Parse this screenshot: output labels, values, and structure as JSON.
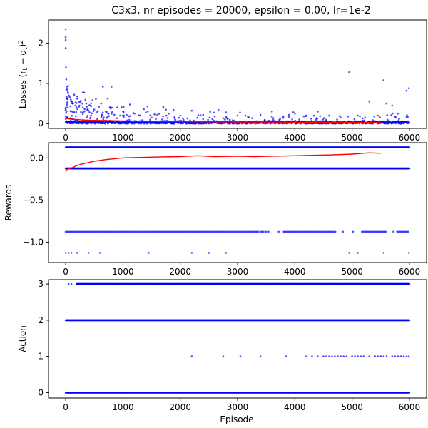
{
  "chart_data": [
    {
      "type": "scatter",
      "title": "C3x3, nr episodes = 20000, epsilon = 0.00, lr=1e-2",
      "ylabel": "Losses $(r_t - q_t)^2$",
      "ylabel_parts": [
        "Losses (r",
        "t",
        " − q",
        "t",
        ")",
        "2"
      ],
      "xlabel": "",
      "xlim": [
        -300,
        6300
      ],
      "ylim": [
        -0.12,
        2.58
      ],
      "xticks": [
        0,
        1000,
        2000,
        3000,
        4000,
        5000,
        6000
      ],
      "yticks": [
        0,
        1,
        2
      ],
      "points": {
        "color": "#0000ff",
        "description_free": true,
        "dense_band": {
          "x_from": 0,
          "x_to": 6000,
          "y_from": 0,
          "y_to": 0.06
        },
        "outliers": [
          [
            0,
            2.35
          ],
          [
            0,
            2.15
          ],
          [
            0,
            2.08
          ],
          [
            0,
            1.88
          ],
          [
            5,
            1.4
          ],
          [
            10,
            1.1
          ],
          [
            20,
            0.92
          ],
          [
            30,
            0.85
          ],
          [
            40,
            0.78
          ],
          [
            55,
            0.7
          ],
          [
            70,
            0.66
          ],
          [
            90,
            0.6
          ],
          [
            110,
            0.55
          ],
          [
            130,
            0.5
          ],
          [
            150,
            0.72
          ],
          [
            170,
            0.45
          ],
          [
            200,
            0.62
          ],
          [
            230,
            0.42
          ],
          [
            260,
            0.55
          ],
          [
            300,
            0.4
          ],
          [
            330,
            0.36
          ],
          [
            360,
            0.5
          ],
          [
            400,
            0.32
          ],
          [
            430,
            0.45
          ],
          [
            470,
            0.58
          ],
          [
            500,
            0.35
          ],
          [
            540,
            0.28
          ],
          [
            580,
            0.42
          ],
          [
            620,
            0.5
          ],
          [
            650,
            0.92
          ],
          [
            700,
            0.3
          ],
          [
            750,
            0.25
          ],
          [
            800,
            0.92
          ],
          [
            850,
            0.22
          ],
          [
            900,
            0.4
          ],
          [
            950,
            0.2
          ],
          [
            1000,
            0.3
          ],
          [
            1100,
            0.18
          ],
          [
            1200,
            0.25
          ],
          [
            1300,
            0.2
          ],
          [
            1400,
            0.28
          ],
          [
            1500,
            0.15
          ],
          [
            1600,
            0.22
          ],
          [
            1700,
            0.18
          ],
          [
            1800,
            0.25
          ],
          [
            1900,
            0.16
          ],
          [
            2000,
            0.2
          ],
          [
            2200,
            0.32
          ],
          [
            2400,
            0.22
          ],
          [
            2600,
            0.18
          ],
          [
            2800,
            0.28
          ],
          [
            3000,
            0.2
          ],
          [
            3200,
            0.15
          ],
          [
            3400,
            0.22
          ],
          [
            3600,
            0.3
          ],
          [
            3800,
            0.18
          ],
          [
            4000,
            0.25
          ],
          [
            4200,
            0.2
          ],
          [
            4400,
            0.3
          ],
          [
            4600,
            0.2
          ],
          [
            4800,
            0.15
          ],
          [
            4950,
            1.28
          ],
          [
            5100,
            0.2
          ],
          [
            5300,
            0.55
          ],
          [
            5450,
            0.2
          ],
          [
            5550,
            1.08
          ],
          [
            5600,
            0.5
          ],
          [
            5700,
            0.45
          ],
          [
            5800,
            0.25
          ],
          [
            5950,
            0.82
          ],
          [
            5990,
            0.88
          ]
        ]
      },
      "trend": {
        "color": "#ff0000",
        "x": [
          0,
          100,
          200,
          300,
          400,
          500,
          700,
          900,
          1200,
          1500,
          2000,
          2500,
          3000,
          3500,
          4000,
          4500,
          5000,
          5500
        ],
        "y": [
          0.13,
          0.11,
          0.1,
          0.09,
          0.085,
          0.08,
          0.075,
          0.07,
          0.06,
          0.055,
          0.05,
          0.045,
          0.04,
          0.04,
          0.035,
          0.035,
          0.03,
          0.03
        ]
      }
    },
    {
      "type": "scatter",
      "title": "",
      "ylabel": "Rewards",
      "xlabel": "",
      "xlim": [
        -300,
        6300
      ],
      "ylim": [
        -1.24,
        0.18
      ],
      "xticks": [
        0,
        1000,
        2000,
        3000,
        4000,
        5000,
        6000
      ],
      "yticks": [
        0.0,
        -0.5,
        -1.0
      ],
      "ytick_labels": [
        "0.0",
        "−0.5",
        "−1.0"
      ],
      "levels": [
        {
          "y": 0.125,
          "x_from": 0,
          "x_to": 6000,
          "density": "dense"
        },
        {
          "y": -0.125,
          "x_from": 0,
          "x_to": 6000,
          "density": "dense"
        },
        {
          "y": -0.875,
          "x_from": 0,
          "x_to": 6000,
          "density": "medium"
        }
      ],
      "sparse_points": [
        [
          0,
          -1.125
        ],
        [
          50,
          -1.125
        ],
        [
          100,
          -1.125
        ],
        [
          200,
          -1.125
        ],
        [
          400,
          -1.125
        ],
        [
          600,
          -1.125
        ],
        [
          1450,
          -1.125
        ],
        [
          2200,
          -1.125
        ],
        [
          2500,
          -1.125
        ],
        [
          2800,
          -1.125
        ],
        [
          4950,
          -1.125
        ],
        [
          5100,
          -1.125
        ],
        [
          5550,
          -1.125
        ],
        [
          5990,
          -1.125
        ]
      ],
      "gaps_level_minus_0875": [
        [
          3300,
          3800
        ],
        [
          4700,
          5200
        ],
        [
          5600,
          5900
        ]
      ],
      "trend": {
        "color": "#ff0000",
        "x": [
          0,
          50,
          100,
          200,
          300,
          500,
          700,
          1000,
          1300,
          1600,
          2000,
          2300,
          2600,
          3000,
          3300,
          3600,
          4000,
          4300,
          4600,
          5000,
          5300,
          5500
        ],
        "y": [
          -0.16,
          -0.13,
          -0.12,
          -0.09,
          -0.07,
          -0.04,
          -0.02,
          0.0,
          0.005,
          0.01,
          0.015,
          0.025,
          0.015,
          0.02,
          0.015,
          0.02,
          0.025,
          0.03,
          0.035,
          0.045,
          0.06,
          0.055
        ]
      }
    },
    {
      "type": "scatter",
      "title": "",
      "ylabel": "Action",
      "xlabel": "Episode",
      "xlim": [
        -300,
        6300
      ],
      "ylim": [
        -0.15,
        3.12
      ],
      "xticks": [
        0,
        1000,
        2000,
        3000,
        4000,
        5000,
        6000
      ],
      "yticks": [
        0,
        1,
        2,
        3
      ],
      "levels": [
        {
          "y": 0,
          "x_from": 0,
          "x_to": 6000,
          "density": "dense"
        },
        {
          "y": 2,
          "x_from": 0,
          "x_to": 6000,
          "density": "dense"
        },
        {
          "y": 3,
          "x_from": 190,
          "x_to": 6000,
          "density": "dense"
        }
      ],
      "sparse_points": [
        [
          50,
          3
        ],
        [
          100,
          3
        ],
        [
          2200,
          1
        ],
        [
          2750,
          1
        ],
        [
          3050,
          1
        ],
        [
          3400,
          1
        ],
        [
          3850,
          1
        ],
        [
          4200,
          1
        ],
        [
          4300,
          1
        ],
        [
          4400,
          1
        ],
        [
          4500,
          1
        ],
        [
          4550,
          1
        ],
        [
          4600,
          1
        ],
        [
          4650,
          1
        ],
        [
          4700,
          1
        ],
        [
          4750,
          1
        ],
        [
          4800,
          1
        ],
        [
          4850,
          1
        ],
        [
          4900,
          1
        ],
        [
          5000,
          1
        ],
        [
          5050,
          1
        ],
        [
          5100,
          1
        ],
        [
          5150,
          1
        ],
        [
          5200,
          1
        ],
        [
          5300,
          1
        ],
        [
          5400,
          1
        ],
        [
          5450,
          1
        ],
        [
          5500,
          1
        ],
        [
          5550,
          1
        ],
        [
          5600,
          1
        ],
        [
          5700,
          1
        ],
        [
          5750,
          1
        ],
        [
          5800,
          1
        ],
        [
          5850,
          1
        ],
        [
          5900,
          1
        ],
        [
          5950,
          1
        ],
        [
          5990,
          1
        ]
      ]
    }
  ],
  "colors": {
    "points": "#0000ff",
    "trend": "#ff0000",
    "axis": "#000000"
  }
}
